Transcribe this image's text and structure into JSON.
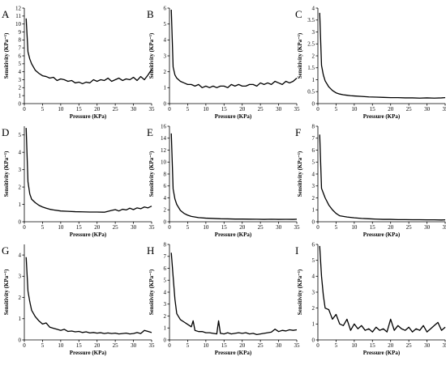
{
  "chart_data": [
    {
      "type": "line",
      "panel": "A",
      "xlabel": "Pressure (KPa)",
      "ylabel": "Sensitivity (KPa⁻¹)",
      "xlim": [
        0,
        35
      ],
      "ylim": [
        0,
        12
      ],
      "xticks": [
        0,
        5,
        10,
        15,
        20,
        25,
        30,
        35
      ],
      "yticks": [
        0,
        1,
        2,
        3,
        4,
        5,
        6,
        7,
        8,
        9,
        10,
        11,
        12
      ],
      "series": [
        {
          "x": [
            0.5,
            1,
            1.5,
            2,
            3,
            4,
            5,
            6,
            7,
            8,
            9,
            10,
            11,
            12,
            13,
            14,
            15,
            16,
            17,
            18,
            19,
            20,
            21,
            22,
            23,
            24,
            25,
            26,
            27,
            28,
            29,
            30,
            31,
            32,
            33,
            34,
            35
          ],
          "y": [
            10.7,
            6.5,
            5.6,
            5.0,
            4.2,
            3.8,
            3.5,
            3.4,
            3.2,
            3.3,
            2.9,
            3.1,
            3.0,
            2.8,
            2.9,
            2.6,
            2.7,
            2.5,
            2.7,
            2.6,
            3.0,
            2.8,
            3.0,
            2.9,
            3.2,
            2.8,
            3.0,
            3.2,
            2.9,
            3.1,
            3.0,
            3.3,
            2.9,
            3.4,
            3.0,
            3.6,
            4.3
          ]
        }
      ]
    },
    {
      "type": "line",
      "panel": "B",
      "xlabel": "Pressure (KPa)",
      "ylabel": "Sensitivity (KPa⁻¹)",
      "xlim": [
        0,
        35
      ],
      "ylim": [
        0,
        6
      ],
      "xticks": [
        0,
        5,
        10,
        15,
        20,
        25,
        30,
        35
      ],
      "yticks": [
        0,
        1,
        2,
        3,
        4,
        5,
        6
      ],
      "series": [
        {
          "x": [
            0.5,
            1,
            1.5,
            2,
            3,
            4,
            5,
            6,
            7,
            8,
            9,
            10,
            11,
            12,
            13,
            14,
            15,
            16,
            17,
            18,
            19,
            20,
            21,
            22,
            23,
            24,
            25,
            26,
            27,
            28,
            29,
            30,
            31,
            32,
            33,
            34,
            35
          ],
          "y": [
            5.9,
            2.3,
            1.8,
            1.6,
            1.4,
            1.3,
            1.2,
            1.2,
            1.1,
            1.2,
            1.0,
            1.1,
            1.0,
            1.1,
            1.0,
            1.1,
            1.1,
            1.0,
            1.2,
            1.1,
            1.2,
            1.1,
            1.1,
            1.2,
            1.2,
            1.1,
            1.3,
            1.2,
            1.3,
            1.2,
            1.4,
            1.3,
            1.2,
            1.4,
            1.3,
            1.4,
            1.6
          ]
        }
      ]
    },
    {
      "type": "line",
      "panel": "C",
      "xlabel": "Pressure (KPa)",
      "ylabel": "Sensitivity (KPa⁻¹)",
      "xlim": [
        0,
        35
      ],
      "ylim": [
        0,
        4
      ],
      "xticks": [
        0,
        5,
        10,
        15,
        20,
        25,
        30,
        35
      ],
      "yticks": [
        0,
        0.5,
        1.0,
        1.5,
        2.0,
        2.5,
        3.0,
        3.5,
        4.0
      ],
      "series": [
        {
          "x": [
            0.5,
            1,
            1.5,
            2,
            3,
            4,
            5,
            6,
            7,
            8,
            9,
            10,
            12,
            14,
            16,
            18,
            20,
            22,
            24,
            26,
            28,
            30,
            32,
            34,
            35
          ],
          "y": [
            3.8,
            1.6,
            1.2,
            0.95,
            0.7,
            0.55,
            0.45,
            0.4,
            0.37,
            0.35,
            0.33,
            0.32,
            0.3,
            0.28,
            0.27,
            0.26,
            0.25,
            0.25,
            0.24,
            0.24,
            0.23,
            0.24,
            0.23,
            0.24,
            0.25
          ]
        }
      ]
    },
    {
      "type": "line",
      "panel": "D",
      "xlabel": "Pressure (KPa)",
      "ylabel": "Sensitivity (KPa⁻¹)",
      "xlim": [
        0,
        35
      ],
      "ylim": [
        0,
        5.5
      ],
      "xticks": [
        0,
        5,
        10,
        15,
        20,
        25,
        30,
        35
      ],
      "yticks": [
        0,
        1,
        2,
        3,
        4,
        5
      ],
      "series": [
        {
          "x": [
            0.5,
            1,
            1.5,
            2,
            3,
            4,
            5,
            6,
            7,
            8,
            10,
            12,
            14,
            16,
            18,
            20,
            22,
            23,
            24,
            25,
            26,
            27,
            28,
            29,
            30,
            31,
            32,
            33,
            34,
            35
          ],
          "y": [
            5.4,
            2.3,
            1.6,
            1.3,
            1.1,
            0.95,
            0.85,
            0.78,
            0.72,
            0.68,
            0.62,
            0.6,
            0.58,
            0.57,
            0.56,
            0.56,
            0.55,
            0.6,
            0.65,
            0.7,
            0.62,
            0.72,
            0.68,
            0.78,
            0.7,
            0.8,
            0.75,
            0.85,
            0.8,
            0.9
          ]
        }
      ]
    },
    {
      "type": "line",
      "panel": "E",
      "xlabel": "Pressure (KPa)",
      "ylabel": "Sensitivity (KPa⁻¹)",
      "xlim": [
        0,
        35
      ],
      "ylim": [
        0,
        16
      ],
      "xticks": [
        0,
        5,
        10,
        15,
        20,
        25,
        30,
        35
      ],
      "yticks": [
        0,
        2,
        4,
        6,
        8,
        10,
        12,
        14,
        16
      ],
      "series": [
        {
          "x": [
            0.5,
            1,
            1.5,
            2,
            3,
            4,
            5,
            6,
            7,
            8,
            10,
            12,
            14,
            16,
            18,
            20,
            22,
            24,
            26,
            28,
            30,
            32,
            34,
            35
          ],
          "y": [
            14.8,
            5.5,
            3.8,
            2.9,
            1.9,
            1.4,
            1.1,
            0.9,
            0.8,
            0.7,
            0.6,
            0.55,
            0.5,
            0.48,
            0.45,
            0.45,
            0.43,
            0.42,
            0.4,
            0.42,
            0.4,
            0.41,
            0.4,
            0.42
          ]
        }
      ]
    },
    {
      "type": "line",
      "panel": "F",
      "xlabel": "Pressure (KPa)",
      "ylabel": "Sensitivity (KPa⁻¹)",
      "xlim": [
        0,
        35
      ],
      "ylim": [
        0,
        8
      ],
      "xticks": [
        0,
        5,
        10,
        15,
        20,
        25,
        30,
        35
      ],
      "yticks": [
        0,
        1,
        2,
        3,
        4,
        5,
        6,
        7,
        8
      ],
      "series": [
        {
          "x": [
            0.5,
            1,
            1.5,
            2,
            3,
            4,
            5,
            6,
            7,
            8,
            10,
            12,
            14,
            16,
            18,
            20,
            22,
            24,
            26,
            28,
            30,
            32,
            34,
            35
          ],
          "y": [
            7.3,
            2.8,
            2.4,
            2.0,
            1.4,
            1.0,
            0.7,
            0.5,
            0.45,
            0.4,
            0.33,
            0.28,
            0.25,
            0.22,
            0.2,
            0.2,
            0.18,
            0.18,
            0.17,
            0.17,
            0.16,
            0.16,
            0.15,
            0.16
          ]
        }
      ]
    },
    {
      "type": "line",
      "panel": "G",
      "xlabel": "Pressure (KPa)",
      "ylabel": "Sensitivity (KPa⁻¹)",
      "xlim": [
        0,
        35
      ],
      "ylim": [
        0,
        4.5
      ],
      "xticks": [
        0,
        5,
        10,
        15,
        20,
        25,
        30,
        35
      ],
      "yticks": [
        0,
        1,
        2,
        3,
        4
      ],
      "series": [
        {
          "x": [
            0.5,
            1,
            1.5,
            2,
            3,
            4,
            5,
            6,
            7,
            8,
            9,
            10,
            11,
            12,
            13,
            14,
            15,
            16,
            17,
            18,
            19,
            20,
            21,
            22,
            23,
            24,
            25,
            26,
            27,
            28,
            29,
            30,
            31,
            32,
            33,
            34,
            35
          ],
          "y": [
            3.9,
            2.3,
            1.8,
            1.4,
            1.1,
            0.9,
            0.75,
            0.8,
            0.6,
            0.55,
            0.5,
            0.45,
            0.5,
            0.4,
            0.42,
            0.38,
            0.4,
            0.35,
            0.38,
            0.33,
            0.35,
            0.32,
            0.34,
            0.3,
            0.33,
            0.3,
            0.32,
            0.28,
            0.3,
            0.32,
            0.28,
            0.3,
            0.35,
            0.3,
            0.45,
            0.4,
            0.35
          ]
        }
      ]
    },
    {
      "type": "line",
      "panel": "H",
      "xlabel": "Pressure (KPa)",
      "ylabel": "Sensitivity (KPa⁻¹)",
      "xlim": [
        0,
        35
      ],
      "ylim": [
        0,
        8
      ],
      "xticks": [
        0,
        5,
        10,
        15,
        20,
        25,
        30,
        35
      ],
      "yticks": [
        0,
        1,
        2,
        3,
        4,
        5,
        6,
        7,
        8
      ],
      "series": [
        {
          "x": [
            0.5,
            1,
            1.5,
            2,
            3,
            4,
            5,
            6,
            6.5,
            7,
            8,
            9,
            10,
            11,
            12,
            13,
            13.5,
            14,
            15,
            16,
            17,
            18,
            19,
            20,
            21,
            22,
            23,
            24,
            25,
            26,
            27,
            28,
            29,
            30,
            31,
            32,
            33,
            34,
            35
          ],
          "y": [
            7.3,
            5.3,
            3.4,
            2.2,
            1.7,
            1.5,
            1.3,
            1.1,
            1.6,
            0.8,
            0.7,
            0.7,
            0.6,
            0.6,
            0.55,
            0.5,
            1.6,
            0.55,
            0.5,
            0.6,
            0.5,
            0.55,
            0.6,
            0.55,
            0.6,
            0.5,
            0.55,
            0.45,
            0.5,
            0.55,
            0.6,
            0.65,
            0.9,
            0.7,
            0.8,
            0.75,
            0.85,
            0.8,
            0.85
          ]
        }
      ]
    },
    {
      "type": "line",
      "panel": "I",
      "xlabel": "Pressure (KPa)",
      "ylabel": "Sensitivity (KPa⁻¹)",
      "xlim": [
        0,
        35
      ],
      "ylim": [
        0,
        6
      ],
      "xticks": [
        0,
        5,
        10,
        15,
        20,
        25,
        30,
        35
      ],
      "yticks": [
        0,
        1,
        2,
        3,
        4,
        5,
        6
      ],
      "series": [
        {
          "x": [
            0.5,
            1,
            1.5,
            2,
            3,
            4,
            5,
            6,
            7,
            8,
            9,
            10,
            11,
            12,
            13,
            14,
            15,
            16,
            17,
            18,
            19,
            20,
            21,
            22,
            23,
            24,
            25,
            26,
            27,
            28,
            29,
            30,
            31,
            32,
            33,
            34,
            35
          ],
          "y": [
            5.9,
            4.0,
            2.8,
            2.0,
            1.9,
            1.3,
            1.6,
            1.0,
            0.9,
            1.3,
            0.6,
            1.0,
            0.7,
            0.9,
            0.6,
            0.7,
            0.5,
            0.8,
            0.6,
            0.7,
            0.5,
            1.3,
            0.6,
            0.9,
            0.7,
            0.6,
            0.8,
            0.5,
            0.7,
            0.6,
            0.9,
            0.5,
            0.7,
            0.9,
            1.1,
            0.6,
            0.8
          ]
        }
      ]
    }
  ]
}
